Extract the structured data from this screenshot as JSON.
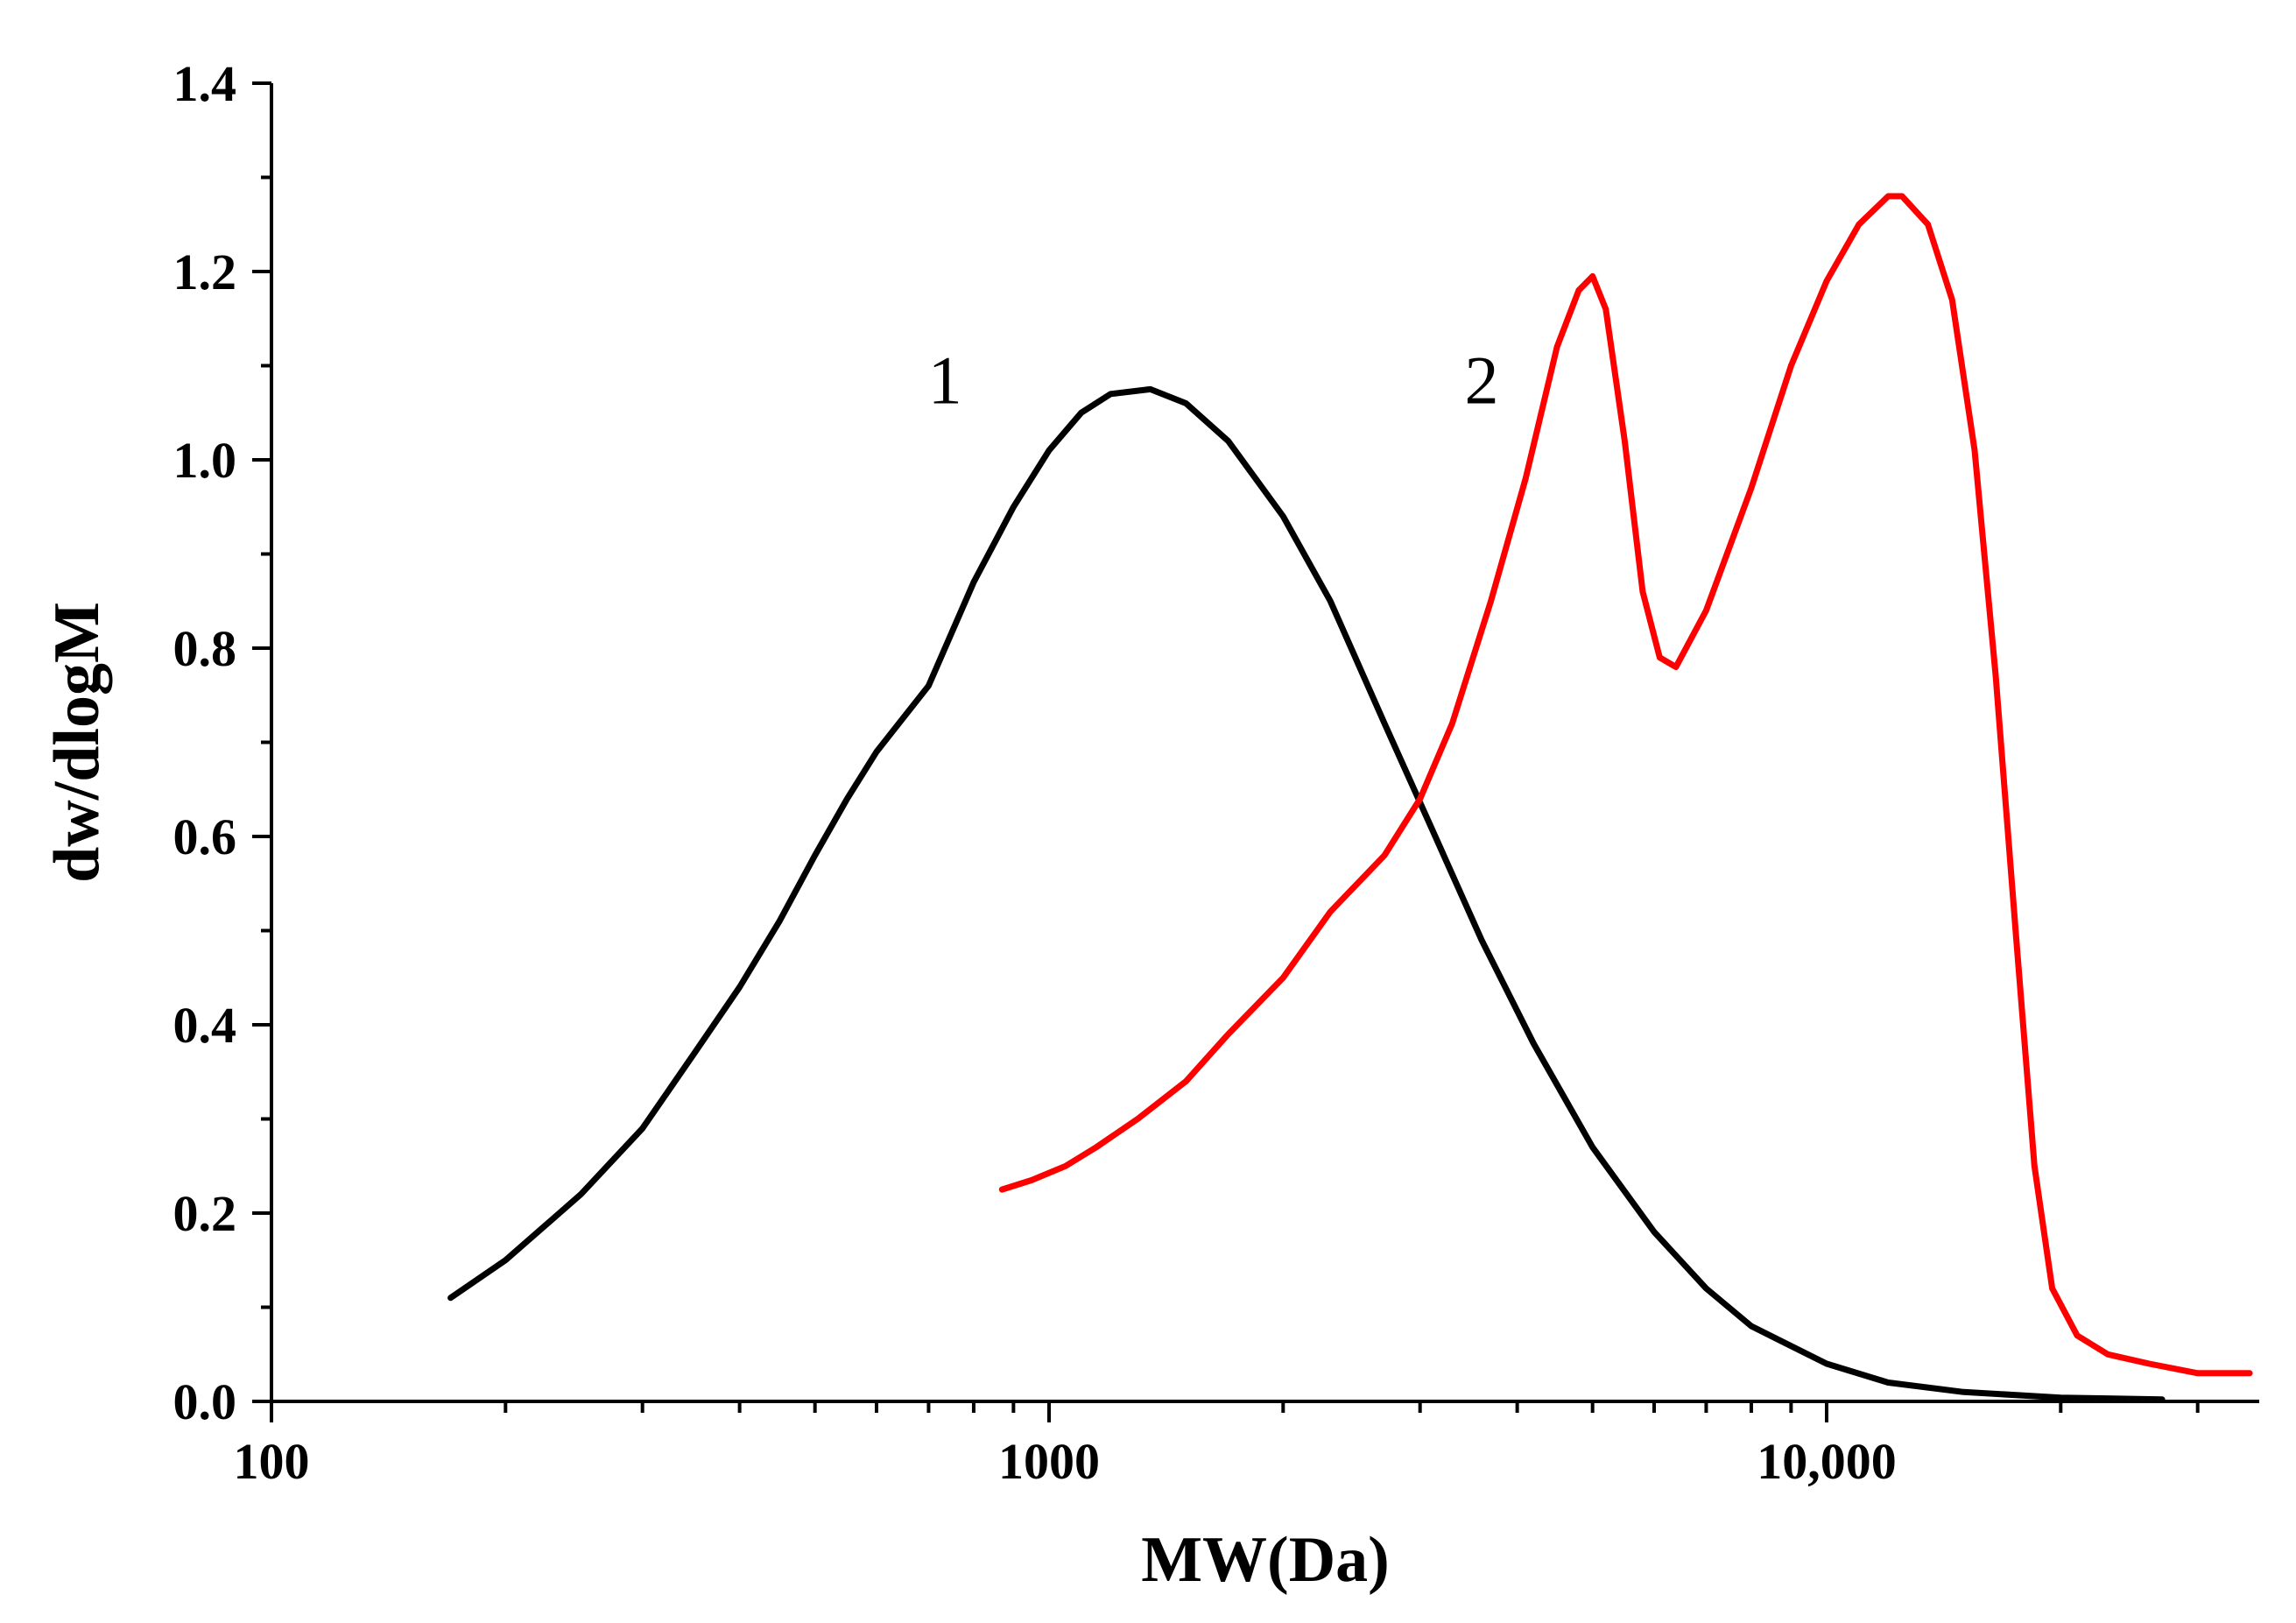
{
  "chart_data": {
    "type": "line",
    "title": "",
    "xlabel": "MW(Da)",
    "ylabel": "dw/dlogM",
    "xscale": "log",
    "xlim": [
      100,
      36000
    ],
    "ylim": [
      0,
      1.4
    ],
    "grid": false,
    "x_ticks": [
      {
        "value": 100,
        "label": "100"
      },
      {
        "value": 1000,
        "label": "1000"
      },
      {
        "value": 10000,
        "label": "10,000"
      }
    ],
    "y_ticks": [
      {
        "value": 0.0,
        "label": "0.0"
      },
      {
        "value": 0.2,
        "label": "0.2"
      },
      {
        "value": 0.4,
        "label": "0.4"
      },
      {
        "value": 0.6,
        "label": "0.6"
      },
      {
        "value": 0.8,
        "label": "0.8"
      },
      {
        "value": 1.0,
        "label": "1.0"
      },
      {
        "value": 1.2,
        "label": "1.2"
      },
      {
        "value": 1.4,
        "label": "1.4"
      }
    ],
    "series": [
      {
        "name": "1",
        "color": "#000000",
        "label_at": {
          "x": 735,
          "y": 1.06
        },
        "points": [
          [
            170,
            0.11
          ],
          [
            200,
            0.15
          ],
          [
            250,
            0.22
          ],
          [
            300,
            0.29
          ],
          [
            350,
            0.37
          ],
          [
            400,
            0.44
          ],
          [
            450,
            0.51
          ],
          [
            500,
            0.58
          ],
          [
            550,
            0.64
          ],
          [
            600,
            0.69
          ],
          [
            700,
            0.76
          ],
          [
            800,
            0.87
          ],
          [
            900,
            0.95
          ],
          [
            1000,
            1.01
          ],
          [
            1100,
            1.05
          ],
          [
            1200,
            1.07
          ],
          [
            1350,
            1.075
          ],
          [
            1500,
            1.06
          ],
          [
            1700,
            1.02
          ],
          [
            2000,
            0.94
          ],
          [
            2300,
            0.85
          ],
          [
            2700,
            0.72
          ],
          [
            3100,
            0.61
          ],
          [
            3600,
            0.49
          ],
          [
            4200,
            0.38
          ],
          [
            5000,
            0.27
          ],
          [
            6000,
            0.18
          ],
          [
            7000,
            0.12
          ],
          [
            8000,
            0.08
          ],
          [
            10000,
            0.04
          ],
          [
            12000,
            0.02
          ],
          [
            15000,
            0.01
          ],
          [
            20000,
            0.004
          ],
          [
            27000,
            0.002
          ]
        ]
      },
      {
        "name": "2",
        "color": "#ff0000",
        "label_at": {
          "x": 3600,
          "y": 1.06
        },
        "points": [
          [
            870,
            0.225
          ],
          [
            950,
            0.235
          ],
          [
            1050,
            0.25
          ],
          [
            1150,
            0.27
          ],
          [
            1300,
            0.3
          ],
          [
            1500,
            0.34
          ],
          [
            1700,
            0.39
          ],
          [
            2000,
            0.45
          ],
          [
            2300,
            0.52
          ],
          [
            2700,
            0.58
          ],
          [
            3000,
            0.64
          ],
          [
            3300,
            0.72
          ],
          [
            3700,
            0.85
          ],
          [
            4100,
            0.98
          ],
          [
            4500,
            1.12
          ],
          [
            4800,
            1.18
          ],
          [
            5000,
            1.195
          ],
          [
            5200,
            1.16
          ],
          [
            5500,
            1.02
          ],
          [
            5800,
            0.86
          ],
          [
            6100,
            0.79
          ],
          [
            6400,
            0.78
          ],
          [
            7000,
            0.84
          ],
          [
            8000,
            0.97
          ],
          [
            9000,
            1.1
          ],
          [
            10000,
            1.19
          ],
          [
            11000,
            1.25
          ],
          [
            12000,
            1.28
          ],
          [
            12500,
            1.28
          ],
          [
            13500,
            1.25
          ],
          [
            14500,
            1.17
          ],
          [
            15500,
            1.01
          ],
          [
            16500,
            0.77
          ],
          [
            17500,
            0.5
          ],
          [
            18500,
            0.25
          ],
          [
            19500,
            0.12
          ],
          [
            21000,
            0.07
          ],
          [
            23000,
            0.05
          ],
          [
            26000,
            0.04
          ],
          [
            30000,
            0.03
          ],
          [
            33000,
            0.03
          ],
          [
            35000,
            0.03
          ]
        ]
      }
    ]
  }
}
